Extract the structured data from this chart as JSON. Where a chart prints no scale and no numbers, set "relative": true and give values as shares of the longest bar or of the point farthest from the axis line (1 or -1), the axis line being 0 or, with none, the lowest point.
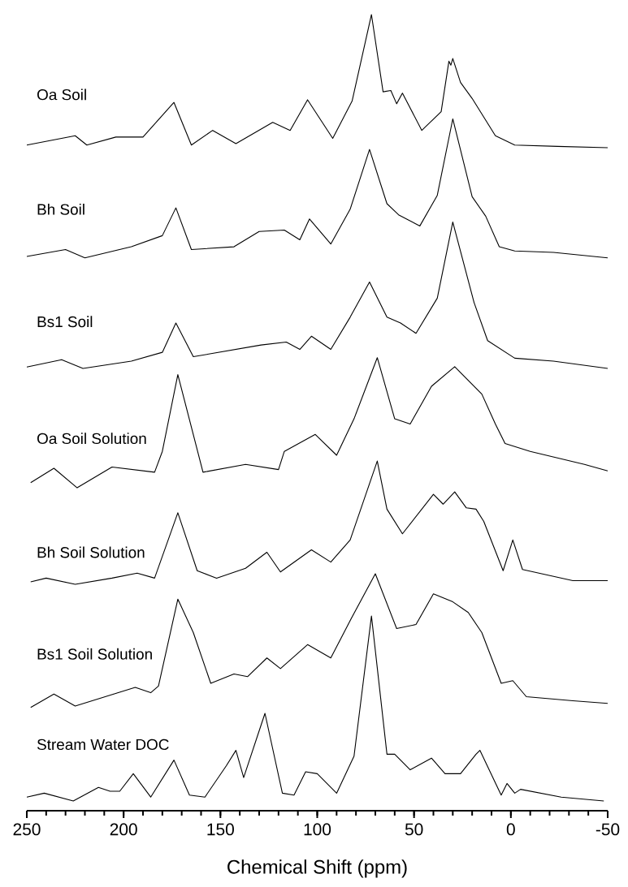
{
  "chart_data": [
    {
      "type": "line",
      "title": "Oa Soil",
      "relative": true,
      "color": "#000000",
      "xlim": [
        250,
        -50
      ],
      "tick_labels": false,
      "x": [
        250,
        225,
        219,
        204,
        190,
        174,
        165,
        154,
        142,
        123,
        114,
        105,
        92,
        82,
        72,
        66,
        62,
        59,
        56,
        46,
        36,
        32,
        31,
        30,
        26,
        20,
        8,
        -2,
        -24,
        -50
      ],
      "values": [
        0.02,
        0.09,
        0.02,
        0.08,
        0.08,
        0.34,
        0.02,
        0.13,
        0.03,
        0.19,
        0.13,
        0.36,
        0.07,
        0.35,
        1.0,
        0.42,
        0.43,
        0.33,
        0.41,
        0.13,
        0.27,
        0.65,
        0.62,
        0.67,
        0.49,
        0.37,
        0.09,
        0.02,
        0.01,
        0
      ]
    },
    {
      "type": "line",
      "title": "Bh Soil",
      "relative": true,
      "color": "#000000",
      "xlim": [
        250,
        -50
      ],
      "tick_labels": false,
      "x": [
        250,
        230,
        220,
        196,
        180,
        173,
        165,
        143,
        130,
        117,
        109,
        104,
        93,
        83,
        73,
        64,
        58,
        47,
        38,
        30,
        20,
        13,
        6,
        -2,
        -22,
        -50
      ],
      "values": [
        0.01,
        0.06,
        0,
        0.08,
        0.16,
        0.36,
        0.06,
        0.08,
        0.19,
        0.2,
        0.13,
        0.28,
        0.1,
        0.35,
        0.78,
        0.39,
        0.31,
        0.23,
        0.45,
        1.0,
        0.44,
        0.3,
        0.08,
        0.05,
        0.04,
        0
      ]
    },
    {
      "type": "line",
      "title": "Bs1 Soil",
      "relative": true,
      "color": "#000000",
      "xlim": [
        250,
        -50
      ],
      "tick_labels": false,
      "x": [
        250,
        232,
        221,
        196,
        180,
        173,
        164,
        129,
        116,
        109,
        103,
        93,
        83,
        73,
        64,
        57,
        49,
        38,
        30,
        19,
        12,
        -2,
        -22,
        -50
      ],
      "values": [
        0.01,
        0.06,
        0,
        0.05,
        0.11,
        0.31,
        0.08,
        0.16,
        0.18,
        0.13,
        0.22,
        0.13,
        0.35,
        0.59,
        0.35,
        0.31,
        0.24,
        0.48,
        1.0,
        0.45,
        0.19,
        0.07,
        0.05,
        0
      ]
    },
    {
      "type": "line",
      "title": "Oa Soil Solution",
      "relative": true,
      "color": "#000000",
      "xlim": [
        250,
        -50
      ],
      "tick_labels": false,
      "x": [
        248,
        236,
        224,
        206,
        184,
        180,
        172,
        159,
        137,
        120,
        117,
        101,
        90,
        81,
        69,
        60,
        52,
        41,
        29,
        15,
        8,
        3,
        -10,
        -38,
        -50
      ],
      "values": [
        0.04,
        0.15,
        0,
        0.16,
        0.12,
        0.28,
        0.87,
        0.12,
        0.18,
        0.14,
        0.28,
        0.41,
        0.25,
        0.53,
        1.0,
        0.53,
        0.49,
        0.78,
        0.93,
        0.72,
        0.49,
        0.34,
        0.28,
        0.18,
        0.13
      ]
    },
    {
      "type": "line",
      "title": "Bh Soil Solution",
      "relative": true,
      "color": "#000000",
      "xlim": [
        250,
        -50
      ],
      "tick_labels": false,
      "x": [
        248,
        240,
        225,
        206,
        193,
        184,
        172,
        162,
        152,
        137,
        126,
        119,
        103,
        93,
        83,
        69,
        64,
        56,
        40,
        35,
        29,
        23,
        18,
        14,
        4,
        -1,
        -6,
        -32,
        -50
      ],
      "values": [
        0.02,
        0.05,
        0,
        0.05,
        0.09,
        0.05,
        0.58,
        0.11,
        0.05,
        0.13,
        0.26,
        0.1,
        0.28,
        0.18,
        0.36,
        1.0,
        0.61,
        0.41,
        0.73,
        0.65,
        0.75,
        0.62,
        0.61,
        0.51,
        0.11,
        0.36,
        0.12,
        0.03,
        0.03
      ]
    },
    {
      "type": "line",
      "title": "Bs1 Soil Solution",
      "relative": true,
      "color": "#000000",
      "xlim": [
        250,
        -50
      ],
      "tick_labels": false,
      "x": [
        248,
        236,
        225,
        194,
        186,
        182,
        172,
        164,
        155,
        143,
        136,
        126,
        119,
        105,
        93,
        83,
        70,
        59,
        49,
        40,
        30,
        22,
        15,
        5,
        -1,
        -8,
        -32,
        -50
      ],
      "values": [
        0,
        0.1,
        0.01,
        0.15,
        0.11,
        0.16,
        0.81,
        0.56,
        0.18,
        0.25,
        0.23,
        0.37,
        0.29,
        0.47,
        0.37,
        0.65,
        1.0,
        0.59,
        0.62,
        0.85,
        0.79,
        0.71,
        0.56,
        0.18,
        0.2,
        0.08,
        0.05,
        0.03
      ]
    },
    {
      "type": "line",
      "title": "Stream Water DOC",
      "relative": true,
      "color": "#000000",
      "xlim": [
        250,
        -50
      ],
      "tick_labels": "x",
      "xlabel": "Chemical Shift (ppm)",
      "xticks": [
        250,
        {
          "value": 240,
          "label": null
        },
        {
          "value": 230,
          "label": null
        },
        {
          "value": 220,
          "label": null
        },
        {
          "value": 210,
          "label": null
        },
        200,
        {
          "value": 190,
          "label": null
        },
        {
          "value": 180,
          "label": null
        },
        {
          "value": 170,
          "label": null
        },
        {
          "value": 160,
          "label": null
        },
        150,
        {
          "value": 140,
          "label": null
        },
        {
          "value": 130,
          "label": null
        },
        {
          "value": 120,
          "label": null
        },
        {
          "value": 110,
          "label": null
        },
        100,
        {
          "value": 90,
          "label": null
        },
        {
          "value": 80,
          "label": null
        },
        {
          "value": 70,
          "label": null
        },
        {
          "value": 60,
          "label": null
        },
        50,
        {
          "value": 40,
          "label": null
        },
        {
          "value": 30,
          "label": null
        },
        {
          "value": 20,
          "label": null
        },
        {
          "value": 10,
          "label": null
        },
        0,
        {
          "value": -10,
          "label": null
        },
        {
          "value": -20,
          "label": null
        },
        {
          "value": -30,
          "label": null
        },
        {
          "value": -40,
          "label": null
        },
        -50
      ],
      "x": [
        250,
        241,
        226,
        213,
        207,
        202,
        195,
        186,
        174,
        166,
        158,
        147,
        142,
        138,
        127,
        118,
        112,
        106,
        100,
        90,
        81,
        72,
        64,
        60,
        52,
        41,
        34,
        26,
        18,
        16,
        5,
        2,
        -2,
        -5,
        -26,
        -48
      ],
      "values": [
        0.07,
        0.09,
        0.05,
        0.12,
        0.1,
        0.1,
        0.19,
        0.07,
        0.26,
        0.08,
        0.07,
        0.23,
        0.31,
        0.17,
        0.5,
        0.09,
        0.08,
        0.2,
        0.19,
        0.09,
        0.28,
        1.0,
        0.29,
        0.29,
        0.21,
        0.27,
        0.19,
        0.19,
        0.29,
        0.31,
        0.08,
        0.14,
        0.09,
        0.11,
        0.07,
        0.05
      ]
    }
  ]
}
